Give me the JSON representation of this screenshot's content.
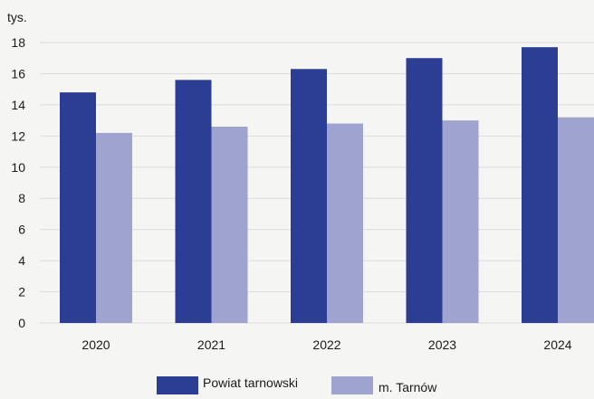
{
  "chart_data": {
    "type": "bar",
    "title": "",
    "xlabel": "",
    "ylabel": "tys.",
    "categories": [
      "2020",
      "2021",
      "2022",
      "2023",
      "2024"
    ],
    "series": [
      {
        "name": "Powiat tarnowski",
        "color": "#2b3e93",
        "values": [
          14.8,
          15.6,
          16.3,
          17.0,
          17.7
        ]
      },
      {
        "name": "m. Tarnów",
        "color": "#9ea4cf",
        "values": [
          12.2,
          12.6,
          12.8,
          13.0,
          13.2
        ]
      }
    ],
    "ylim": [
      0,
      18
    ],
    "yticks": [
      0,
      2,
      4,
      6,
      8,
      10,
      12,
      14,
      16,
      18
    ],
    "grid": true,
    "legend_position": "bottom",
    "background": "#f5f5f4",
    "grid_color": "#dcdcdc"
  }
}
